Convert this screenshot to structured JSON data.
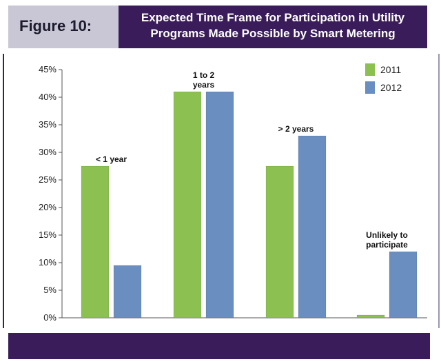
{
  "figure": {
    "label": "Figure 10:",
    "title_line1": "Expected Time Frame for Participation in Utility",
    "title_line2": "Programs Made Possible by Smart Metering"
  },
  "colors": {
    "header_purple": "#3a1c5a",
    "tab_gray": "#c9c7d6",
    "green": "#8cc152",
    "blue": "#6a8ebf"
  },
  "chart_data": {
    "type": "bar",
    "title": "Expected Time Frame for Participation in Utility Programs Made Possible by Smart Metering",
    "xlabel": "",
    "ylabel": "",
    "ylim": [
      0,
      45
    ],
    "yticks": [
      "0%",
      "5%",
      "10%",
      "15%",
      "20%",
      "25%",
      "30%",
      "35%",
      "40%",
      "45%"
    ],
    "categories": [
      "< 1 year",
      "1 to 2 years",
      "> 2 years",
      "Unlikely to participate"
    ],
    "category_labels": [
      [
        "< 1 year"
      ],
      [
        "1 to 2",
        "years"
      ],
      [
        "> 2 years"
      ],
      [
        "Unlikely to",
        "participate"
      ]
    ],
    "series": [
      {
        "name": "2011",
        "values": [
          27.5,
          41,
          27.5,
          0.5
        ]
      },
      {
        "name": "2012",
        "values": [
          9.5,
          41,
          33,
          12
        ]
      }
    ],
    "legend_position": "top-right",
    "grid": false
  }
}
